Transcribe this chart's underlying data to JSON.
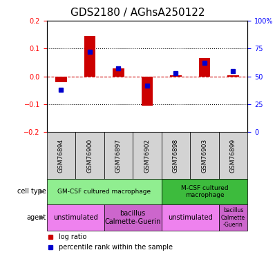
{
  "title": "GDS2180 / AGhsA250122",
  "samples": [
    "GSM76894",
    "GSM76900",
    "GSM76897",
    "GSM76902",
    "GSM76898",
    "GSM76903",
    "GSM76899"
  ],
  "log_ratio": [
    -0.02,
    0.145,
    0.03,
    -0.105,
    0.005,
    0.065,
    0.005
  ],
  "percentile_rank": [
    38,
    72,
    57,
    42,
    53,
    62,
    55
  ],
  "ylim": [
    -0.2,
    0.2
  ],
  "cell_type_groups": [
    {
      "label": "GM-CSF cultured macrophage",
      "start": 0,
      "end": 4,
      "color": "#90ee90"
    },
    {
      "label": "M-CSF cultured\nmacrophage",
      "start": 4,
      "end": 7,
      "color": "#3dbb3d"
    }
  ],
  "agent_groups": [
    {
      "label": "unstimulated",
      "start": 0,
      "end": 2,
      "color": "#ee82ee"
    },
    {
      "label": "bacillus\nCalmette-Guerin",
      "start": 2,
      "end": 4,
      "color": "#cc66cc"
    },
    {
      "label": "unstimulated",
      "start": 4,
      "end": 6,
      "color": "#ee82ee"
    },
    {
      "label": "bacillus\nCalmette\n-Guerin",
      "start": 6,
      "end": 7,
      "color": "#cc66cc"
    }
  ],
  "bar_color_red": "#cc0000",
  "bar_color_blue": "#0000cc",
  "title_fontsize": 11,
  "tick_fontsize": 7,
  "sample_fontsize": 6.5,
  "ann_fontsize": 7,
  "legend_fontsize": 7
}
